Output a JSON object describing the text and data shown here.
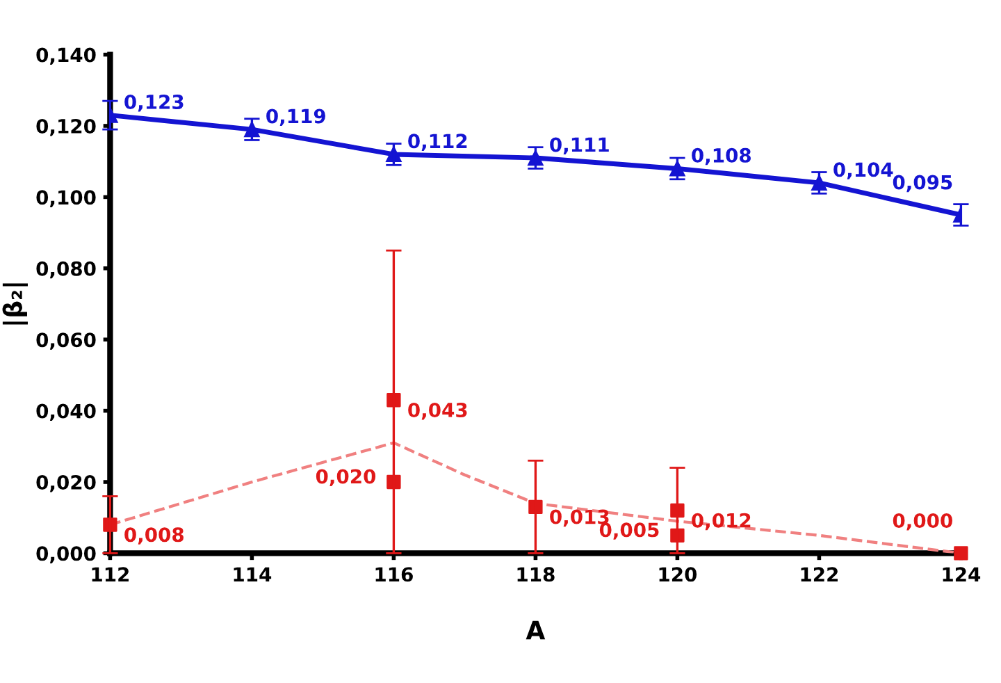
{
  "chart_data": {
    "type": "line",
    "xlabel": "A",
    "ylabel": "|β₂|",
    "xlim": [
      112,
      124
    ],
    "ylim": [
      0,
      0.14
    ],
    "xticks": [
      112,
      114,
      116,
      118,
      120,
      122,
      124
    ],
    "yticks": [
      {
        "value": 0,
        "label": "0,000"
      },
      {
        "value": 0.02,
        "label": "0,020"
      },
      {
        "value": 0.04,
        "label": "0,040"
      },
      {
        "value": 0.06,
        "label": "0,060"
      },
      {
        "value": 0.08,
        "label": "0,080"
      },
      {
        "value": 0.1,
        "label": "0,100"
      },
      {
        "value": 0.12,
        "label": "0,120"
      },
      {
        "value": 0.14,
        "label": "0,140"
      }
    ],
    "grid": false,
    "legend": false,
    "series": [
      {
        "color": "#1414d2",
        "marker": "triangle",
        "line_style": "solid",
        "x": [
          112,
          114,
          116,
          118,
          120,
          122,
          124
        ],
        "values": [
          0.123,
          0.119,
          0.112,
          0.111,
          0.108,
          0.104,
          0.095
        ],
        "errors": [
          0.004,
          0.003,
          0.003,
          0.003,
          0.003,
          0.003,
          0.003
        ],
        "value_labels": [
          "0,123",
          "0,119",
          "0,112",
          "0,111",
          "0,108",
          "0,104",
          "0,095"
        ]
      },
      {
        "type": "line",
        "color": "#f08080",
        "marker": "none",
        "line_style": "dashed",
        "x": [
          112,
          114,
          116,
          117,
          118,
          120,
          122,
          124
        ],
        "values": [
          0.008,
          0.02,
          0.031,
          0.022,
          0.014,
          0.009,
          0.005,
          0.0
        ]
      },
      {
        "type": "scatter",
        "color": "#e01818",
        "marker": "square",
        "x": [
          112,
          116,
          116,
          118,
          120,
          120,
          124
        ],
        "values": [
          0.008,
          0.043,
          0.02,
          0.013,
          0.012,
          0.005,
          0.0
        ],
        "errors": [
          [
            0,
            0.016
          ],
          [
            0,
            0.085
          ],
          null,
          [
            0,
            0.026
          ],
          [
            0,
            0.024
          ],
          null,
          null
        ],
        "value_labels": [
          "0,008",
          "0,043",
          "0,020",
          "0,013",
          "0,012",
          "0,005",
          "0,000"
        ]
      }
    ]
  }
}
